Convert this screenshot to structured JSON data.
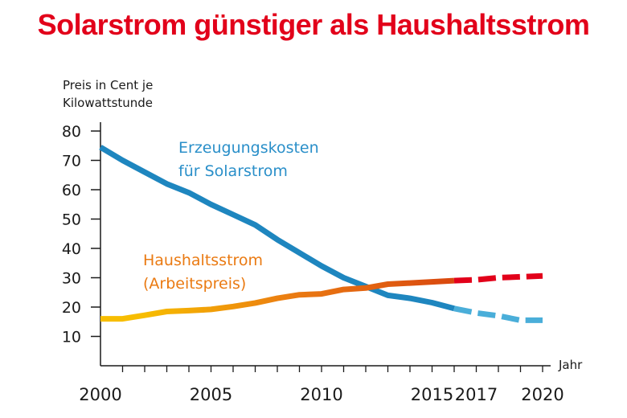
{
  "title": "Solarstrom günstiger als Haushaltsstrom",
  "colors": {
    "title": "#e2001a",
    "solar": "#1e86bf",
    "solar_projection": "#4aaed9",
    "household_start": "#f7bd00",
    "household_mid": "#ea7a12",
    "household_end": "#d9480f",
    "household_projection": "#e2001a",
    "axis": "#1a1a1a"
  },
  "chart_data": {
    "type": "line",
    "title": "Solarstrom günstiger als Haushaltsstrom",
    "ylabel": "Preis in Cent je\nKilowattstunde",
    "xlabel": "Jahr",
    "xlim": [
      2000,
      2020
    ],
    "ylim": [
      0,
      80
    ],
    "yticks": [
      10,
      20,
      30,
      40,
      50,
      60,
      70,
      80
    ],
    "xtick_labels": [
      "2000",
      "2005",
      "2010",
      "2015",
      "2017",
      "2020"
    ],
    "grid": false,
    "projection_from": 2016,
    "series": [
      {
        "name": "Erzeugungskosten für Solarstrom",
        "label_lines": [
          "Erzeugungskosten",
          "für Solarstrom"
        ],
        "x": [
          2000,
          2001,
          2002,
          2003,
          2004,
          2005,
          2006,
          2007,
          2008,
          2009,
          2010,
          2011,
          2012,
          2013,
          2014,
          2015,
          2016,
          2017,
          2018,
          2019,
          2020
        ],
        "y": [
          74.5,
          70,
          66,
          62,
          59,
          55,
          51.5,
          48,
          43,
          38.5,
          34,
          30,
          27,
          24,
          23,
          21.5,
          19.5,
          18,
          17,
          15.5,
          15.5
        ]
      },
      {
        "name": "Haushaltsstrom (Arbeitspreis)",
        "label_lines": [
          "Haushaltsstrom",
          "(Arbeitspreis)"
        ],
        "x": [
          2000,
          2001,
          2002,
          2003,
          2004,
          2005,
          2006,
          2007,
          2008,
          2009,
          2010,
          2011,
          2012,
          2013,
          2014,
          2015,
          2016,
          2017,
          2018,
          2019,
          2020
        ],
        "y": [
          16,
          16,
          17.2,
          18.5,
          18.8,
          19.2,
          20.2,
          21.4,
          23,
          24.2,
          24.5,
          26,
          26.5,
          27.8,
          28.2,
          28.6,
          29,
          29.3,
          30,
          30.3,
          30.6
        ]
      }
    ]
  }
}
